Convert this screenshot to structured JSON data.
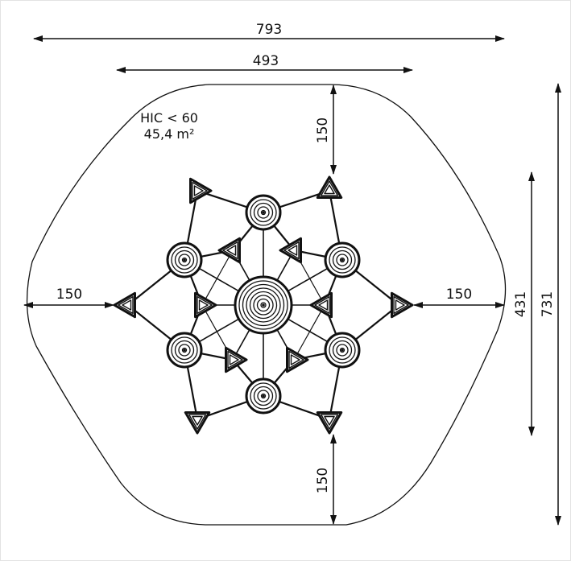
{
  "annotation": {
    "safety": "HIC < 60",
    "area": "45,4 m²"
  },
  "dimensions": {
    "overall_width": "793",
    "inner_width": "493",
    "top_clearance": "150",
    "bottom_clearance": "150",
    "left_clearance": "150",
    "right_clearance": "150",
    "inner_height": "431",
    "overall_height": "731"
  },
  "colors": {
    "line": "#111111",
    "background": "#ffffff"
  }
}
